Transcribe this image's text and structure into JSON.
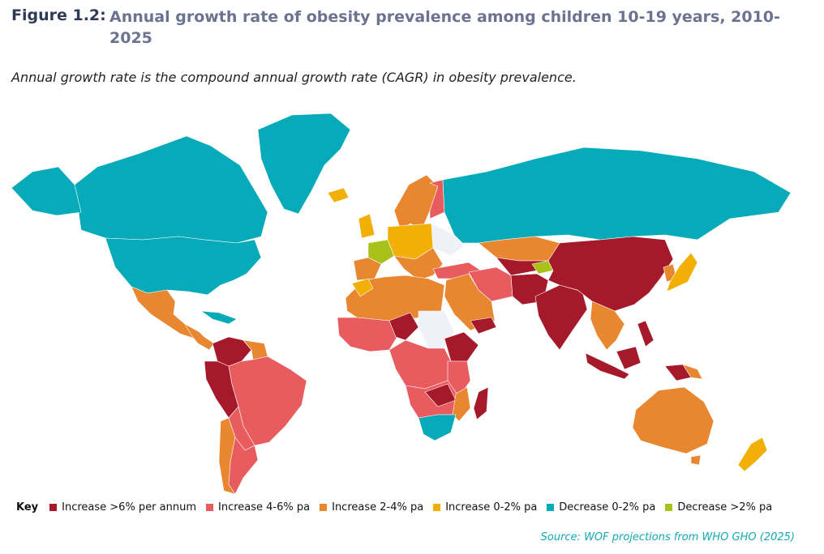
{
  "figure": {
    "label": "Figure 1.2:",
    "title": "Annual growth rate of obesity prevalence among children 10-19 years, 2010-2025",
    "subtitle": "Annual growth rate is the compound annual growth rate (CAGR) in obesity prevalence."
  },
  "legend": {
    "key_label": "Key",
    "items": [
      {
        "id": "inc6",
        "label": "Increase >6% per annum",
        "color": "#a5192b"
      },
      {
        "id": "inc4",
        "label": "Increase 4-6% pa",
        "color": "#e85c5f"
      },
      {
        "id": "inc2",
        "label": "Increase 2-4% pa",
        "color": "#e8872f"
      },
      {
        "id": "inc0",
        "label": "Increase 0-2% pa",
        "color": "#f2b007"
      },
      {
        "id": "dec0",
        "label": "Decrease 0-2% pa",
        "color": "#07aab8"
      },
      {
        "id": "dec2",
        "label": "Decrease >2% pa",
        "color": "#a8c21b"
      }
    ]
  },
  "no_data_color": "#eef1f7",
  "source": "Source: WOF projections from WHO GHO (2025)"
}
